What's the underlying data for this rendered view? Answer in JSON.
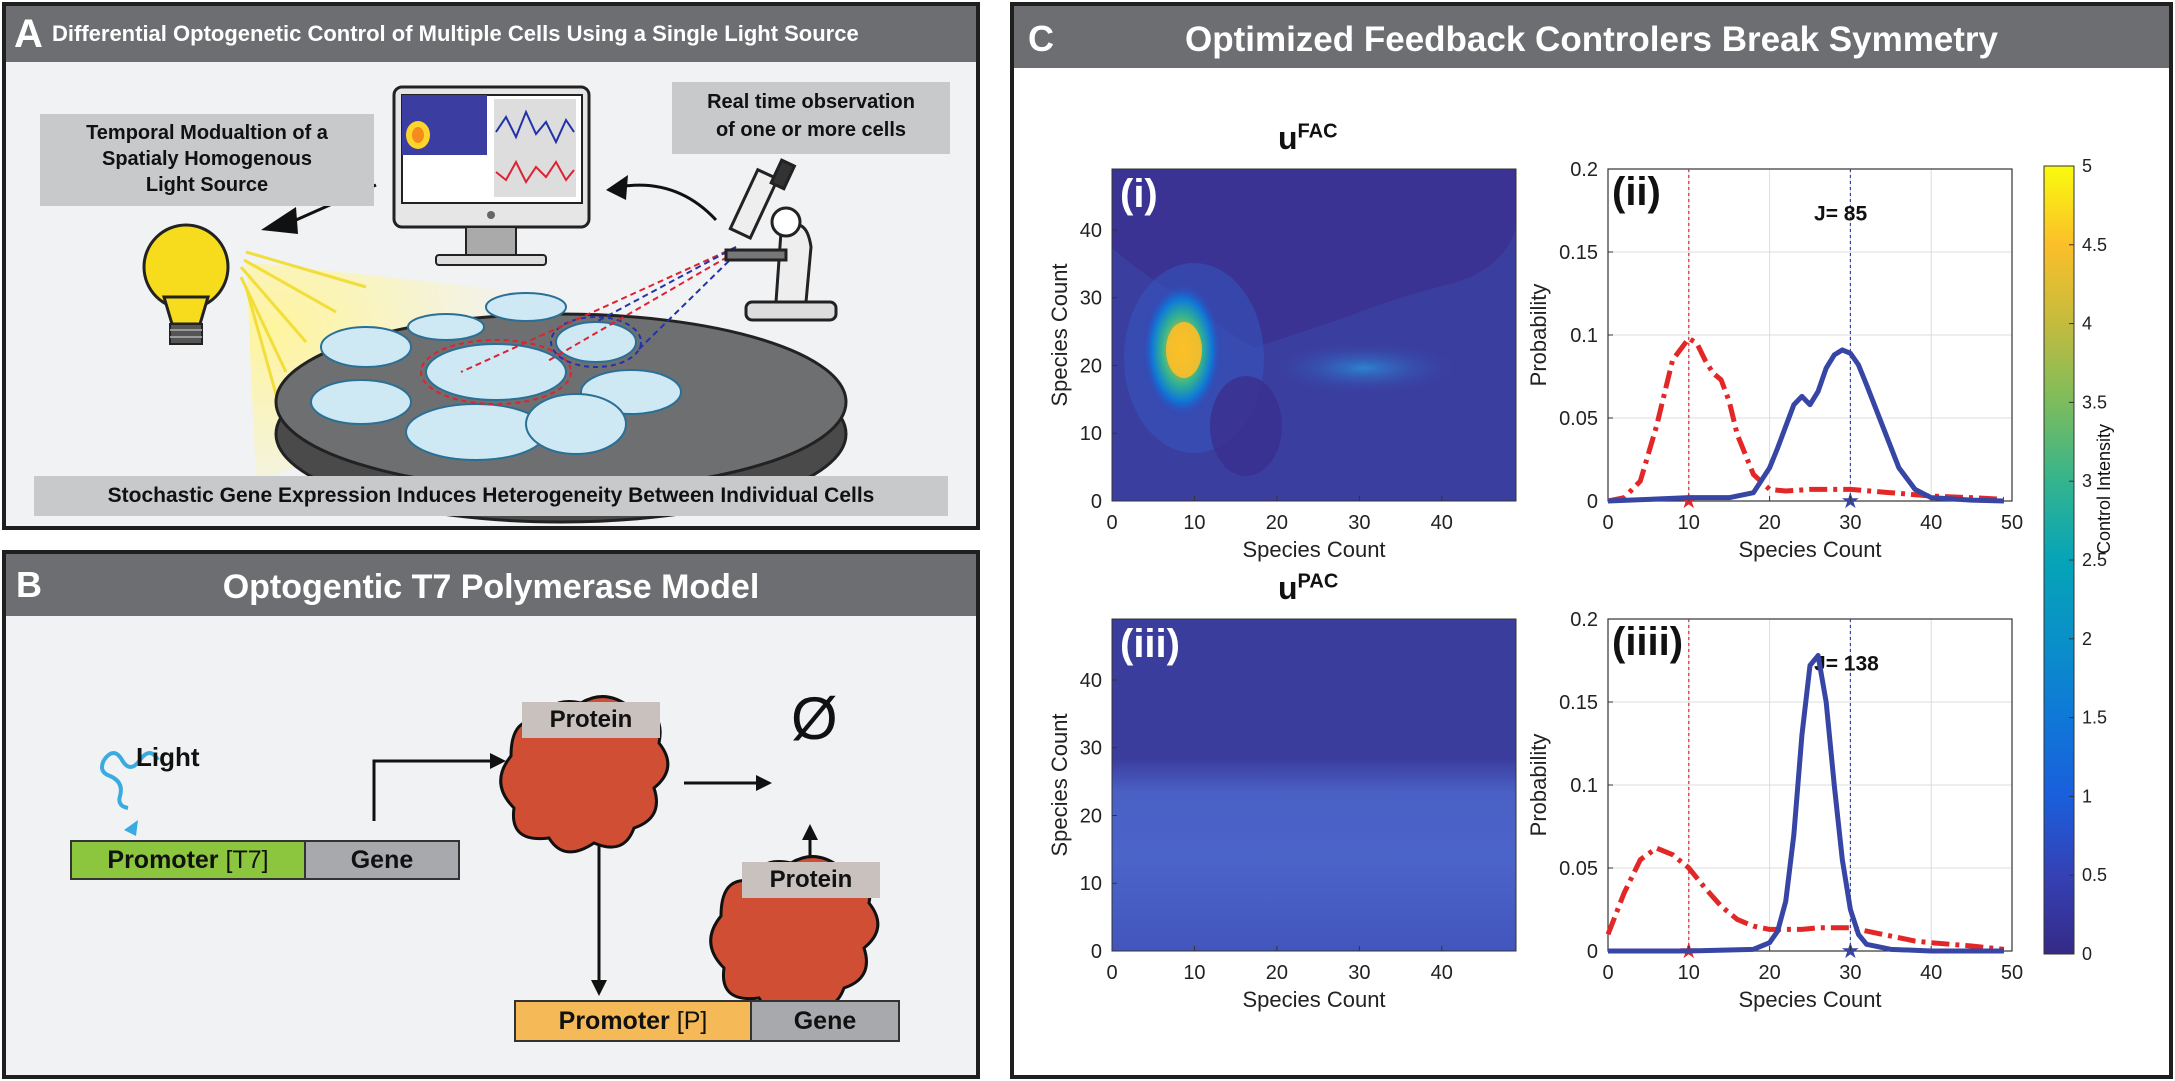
{
  "panelA": {
    "letter": "A",
    "title": "Differential Optogenetic Control of Multiple Cells Using a Single Light Source",
    "temporal_label": [
      "Temporal Modualtion of a",
      "Spatialy Homogenous",
      "Light Source"
    ],
    "observation_label": [
      "Real time observation",
      "of one or more cells"
    ],
    "bottom_label": "Stochastic Gene Expression Induces Heterogeneity Between Individual Cells"
  },
  "panelB": {
    "letter": "B",
    "title": "Optogentic T7 Polymerase Model",
    "light_label": "Light",
    "promoter_t7_label": "Promoter",
    "promoter_t7_tag": "[T7]",
    "gene1_label": "Gene",
    "protein1_label": "Protein",
    "protein2_label": "Protein",
    "null_symbol": "Ø",
    "promoter_p_label": "Promoter",
    "promoter_p_tag": "[P]",
    "gene2_label": "Gene"
  },
  "panelC": {
    "letter": "C",
    "title": "Optimized Feedback Controlers Break Symmetry",
    "fac_title_base": "u",
    "fac_title_sup": "FAC",
    "pac_title_base": "u",
    "pac_title_sup": "PAC",
    "colorbar_label": "Control Intensity",
    "colorbar_ticks": [
      "0",
      "0.5",
      "1",
      "1.5",
      "2",
      "2.5",
      "3",
      "3.5",
      "4",
      "4.5",
      "5"
    ]
  },
  "chart_data": [
    {
      "type": "heatmap",
      "panel_label": "(i)",
      "title": "u^FAC",
      "xlabel": "Species Count",
      "ylabel": "Species Count",
      "xticks": [
        "0",
        "10",
        "20",
        "30",
        "40"
      ],
      "yticks": [
        "0",
        "10",
        "20",
        "30",
        "40"
      ],
      "xlim": [
        0,
        49
      ],
      "ylim": [
        0,
        49
      ],
      "zlim": [
        0,
        5
      ],
      "colormap": "parula",
      "description_hot_spot": {
        "x": 10,
        "y": 19,
        "value": 4.2
      }
    },
    {
      "type": "line",
      "panel_label": "(ii)",
      "xlabel": "Species Count",
      "ylabel": "Probability",
      "xticks": [
        "0",
        "10",
        "20",
        "30",
        "40",
        "50"
      ],
      "yticks": [
        "0",
        "0.05",
        "0.1",
        "0.15",
        "0.2"
      ],
      "xlim": [
        0,
        50
      ],
      "ylim": [
        0,
        0.2
      ],
      "annotation": "J= 85",
      "reference_lines": [
        10,
        30
      ],
      "series": [
        {
          "color": "#e32727",
          "style": "dash-dot",
          "x": [
            0,
            2,
            4,
            6,
            8,
            10,
            11,
            12,
            13,
            14,
            15,
            16,
            18,
            20,
            22,
            25,
            30,
            35,
            40,
            45,
            49
          ],
          "y": [
            0,
            0.002,
            0.012,
            0.045,
            0.085,
            0.098,
            0.095,
            0.085,
            0.077,
            0.073,
            0.06,
            0.04,
            0.016,
            0.007,
            0.006,
            0.007,
            0.007,
            0.005,
            0.003,
            0.002,
            0.001
          ]
        },
        {
          "color": "#3745a5",
          "style": "solid",
          "x": [
            0,
            5,
            10,
            15,
            18,
            20,
            21,
            22,
            23,
            24,
            25,
            26,
            27,
            28,
            29,
            30,
            31,
            32,
            34,
            36,
            38,
            40,
            45,
            49
          ],
          "y": [
            0,
            0.001,
            0.002,
            0.002,
            0.005,
            0.02,
            0.032,
            0.045,
            0.058,
            0.063,
            0.058,
            0.066,
            0.08,
            0.088,
            0.091,
            0.089,
            0.082,
            0.07,
            0.045,
            0.02,
            0.007,
            0.002,
            0.0005,
            0
          ]
        }
      ]
    },
    {
      "type": "heatmap",
      "panel_label": "(iii)",
      "title": "u^PAC",
      "xlabel": "Species Count",
      "ylabel": "Species Count",
      "xticks": [
        "0",
        "10",
        "20",
        "30",
        "40"
      ],
      "yticks": [
        "0",
        "10",
        "20",
        "30",
        "40"
      ],
      "xlim": [
        0,
        49
      ],
      "ylim": [
        0,
        49
      ],
      "zlim": [
        0,
        5
      ],
      "colormap": "parula",
      "row_values": {
        "y_0_to_24": 1.05,
        "y_25_to_49": 0.35
      }
    },
    {
      "type": "line",
      "panel_label": "(iiii)",
      "xlabel": "Species Count",
      "ylabel": "Probability",
      "xticks": [
        "0",
        "10",
        "20",
        "30",
        "40",
        "50"
      ],
      "yticks": [
        "0",
        "0.05",
        "0.1",
        "0.15",
        "0.2"
      ],
      "xlim": [
        0,
        50
      ],
      "ylim": [
        0,
        0.2
      ],
      "annotation": "J= 138",
      "reference_lines": [
        10,
        30
      ],
      "series": [
        {
          "color": "#e32727",
          "style": "dash-dot",
          "x": [
            0,
            2,
            4,
            6,
            8,
            10,
            12,
            14,
            16,
            18,
            20,
            22,
            24,
            26,
            28,
            30,
            32,
            35,
            38,
            40,
            45,
            49
          ],
          "y": [
            0.01,
            0.035,
            0.055,
            0.062,
            0.058,
            0.05,
            0.038,
            0.027,
            0.019,
            0.015,
            0.013,
            0.013,
            0.013,
            0.014,
            0.014,
            0.014,
            0.012,
            0.009,
            0.006,
            0.005,
            0.003,
            0.001
          ]
        },
        {
          "color": "#3745a5",
          "style": "solid",
          "x": [
            0,
            10,
            18,
            20,
            21,
            22,
            23,
            24,
            25,
            26,
            27,
            28,
            29,
            30,
            31,
            32,
            35,
            40,
            49
          ],
          "y": [
            0,
            0,
            0.001,
            0.005,
            0.012,
            0.03,
            0.07,
            0.13,
            0.172,
            0.178,
            0.15,
            0.1,
            0.055,
            0.025,
            0.01,
            0.004,
            0.001,
            0,
            0
          ]
        }
      ]
    }
  ]
}
